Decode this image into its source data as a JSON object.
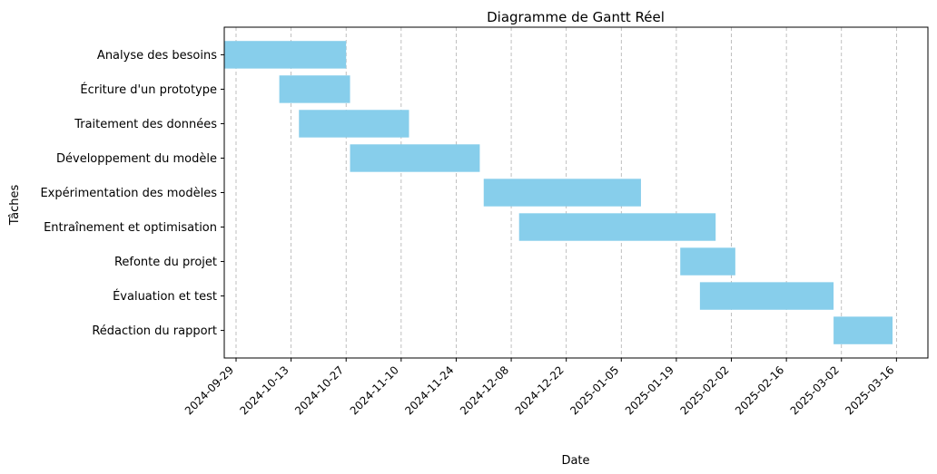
{
  "chart_data": {
    "type": "gantt",
    "title": "Diagramme de Gantt Réel",
    "xlabel": "Date",
    "ylabel": "Tâches",
    "bar_color": "#87CEEB",
    "grid": "vertical dashed",
    "xlim": [
      "2024-09-26",
      "2025-03-24"
    ],
    "x_ticks": [
      "2024-09-29",
      "2024-10-13",
      "2024-10-27",
      "2024-11-10",
      "2024-11-24",
      "2024-12-08",
      "2024-12-22",
      "2025-01-05",
      "2025-01-19",
      "2025-02-02",
      "2025-02-16",
      "2025-03-02",
      "2025-03-16"
    ],
    "tasks": [
      {
        "name": "Analyse des besoins",
        "start": "2024-09-26",
        "end": "2024-10-27"
      },
      {
        "name": "Écriture d'un prototype",
        "start": "2024-10-10",
        "end": "2024-10-28"
      },
      {
        "name": "Traitement des données",
        "start": "2024-10-15",
        "end": "2024-11-12"
      },
      {
        "name": "Développement du modèle",
        "start": "2024-10-28",
        "end": "2024-11-30"
      },
      {
        "name": "Expérimentation des modèles",
        "start": "2024-12-01",
        "end": "2025-01-10"
      },
      {
        "name": "Entraînement et optimisation",
        "start": "2024-12-10",
        "end": "2025-01-29"
      },
      {
        "name": "Refonte du projet",
        "start": "2025-01-20",
        "end": "2025-02-03"
      },
      {
        "name": "Évaluation et test",
        "start": "2025-01-25",
        "end": "2025-02-28"
      },
      {
        "name": "Rédaction du rapport",
        "start": "2025-02-28",
        "end": "2025-03-15"
      }
    ]
  }
}
